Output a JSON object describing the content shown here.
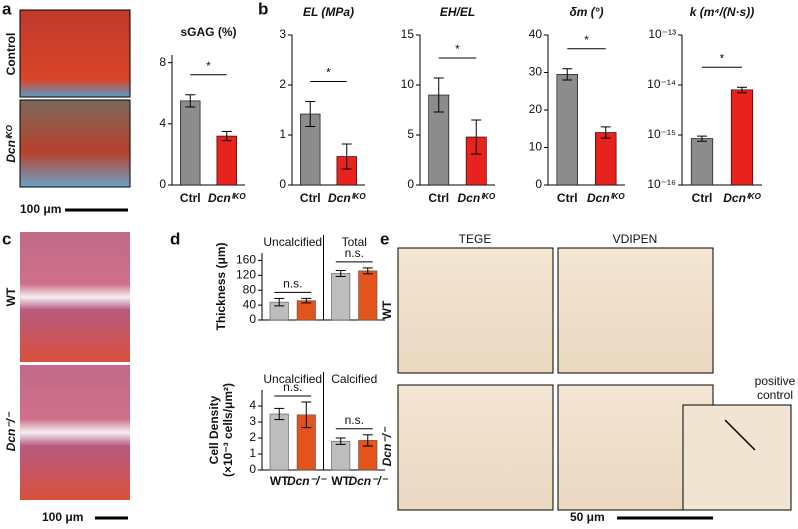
{
  "figure": {
    "panel_labels": [
      "a",
      "b",
      "c",
      "d",
      "e"
    ],
    "a_rows": [
      "Control",
      "Dcnⁱᴷᴼ"
    ],
    "a_scale": "100 μm",
    "c_rows": [
      "WT",
      "Dcn⁻/⁻"
    ],
    "c_scale": "100 μm",
    "e_cols": [
      "TEGE",
      "VDIPEN"
    ],
    "e_rows": [
      "WT",
      "Dcn⁻/⁻"
    ],
    "e_inset": [
      "positive",
      "control"
    ],
    "e_scale": "50 μm"
  },
  "chart_data": [
    {
      "type": "bar",
      "title": "sGAG (%)",
      "categories": [
        "Ctrl",
        "Dcnⁱᴷᴼ"
      ],
      "values": [
        5.5,
        3.2
      ],
      "errors": [
        0.4,
        0.3
      ],
      "colors": [
        "#8c8c8c",
        "#e8231f"
      ],
      "ylim": [
        0,
        8.5
      ],
      "yticks": [
        0,
        4,
        8
      ],
      "significance": "*"
    },
    {
      "type": "bar",
      "title": "EL (MPa)",
      "categories": [
        "Ctrl",
        "Dcnⁱᴷᴼ"
      ],
      "values": [
        1.42,
        0.57
      ],
      "errors": [
        0.25,
        0.25
      ],
      "colors": [
        "#8c8c8c",
        "#e8231f"
      ],
      "ylim": [
        0,
        3
      ],
      "yticks": [
        0,
        1,
        2,
        3
      ],
      "significance": "*"
    },
    {
      "type": "bar",
      "title": "EH/EL",
      "categories": [
        "Ctrl",
        "Dcnⁱᴷᴼ"
      ],
      "values": [
        9.0,
        4.8
      ],
      "errors": [
        1.7,
        1.7
      ],
      "colors": [
        "#8c8c8c",
        "#e8231f"
      ],
      "ylim": [
        0,
        15
      ],
      "yticks": [
        0,
        5,
        10,
        15
      ],
      "significance": "*"
    },
    {
      "type": "bar",
      "title": "δm (°)",
      "categories": [
        "Ctrl",
        "Dcnⁱᴷᴼ"
      ],
      "values": [
        29.5,
        14
      ],
      "errors": [
        1.5,
        1.5
      ],
      "colors": [
        "#8c8c8c",
        "#e8231f"
      ],
      "ylim": [
        0,
        40
      ],
      "yticks": [
        0,
        10,
        20,
        30,
        40
      ],
      "significance": "*"
    },
    {
      "type": "bar",
      "title": "k (m⁴/(N·s))",
      "log": true,
      "categories": [
        "Ctrl",
        "Dcnⁱᴷᴼ"
      ],
      "values": [
        8.5e-16,
        8e-15
      ],
      "errors": [
        1e-16,
        1e-15
      ],
      "colors": [
        "#8c8c8c",
        "#e8231f"
      ],
      "ylim": [
        1e-16,
        1e-13
      ],
      "yticks": [
        {
          "value": 1e-16,
          "label": "10⁻¹⁶"
        },
        {
          "value": 1e-15,
          "label": "10⁻¹⁵"
        },
        {
          "value": 1e-14,
          "label": "10⁻¹⁴"
        },
        {
          "value": 1e-13,
          "label": "10⁻¹³"
        }
      ],
      "significance": "*"
    },
    {
      "type": "grouped-bar",
      "ylabel": [
        "Thickness (μm)"
      ],
      "categories": [
        "Uncalcified",
        "Total"
      ],
      "series": [
        {
          "color": "#bdbdbd",
          "values": [
            48,
            125
          ],
          "errors": [
            10,
            8
          ]
        },
        {
          "color": "#e2541c",
          "values": [
            52,
            132
          ],
          "errors": [
            6,
            8
          ]
        }
      ],
      "ylim": [
        0,
        180
      ],
      "yticks": [
        0,
        40,
        80,
        120,
        160
      ],
      "significance": [
        "n.s.",
        "n.s."
      ]
    },
    {
      "type": "grouped-bar",
      "ylabel": [
        "Cell Density",
        "(×10⁻³ cells/μm²)"
      ],
      "categories": [
        "Uncalcified",
        "Calcified"
      ],
      "series": [
        {
          "name": "WT",
          "color": "#bdbdbd",
          "values": [
            3.5,
            1.8
          ],
          "errors": [
            0.35,
            0.2
          ]
        },
        {
          "name": "Dcn⁻/⁻",
          "color": "#e2541c",
          "values": [
            3.45,
            1.85
          ],
          "errors": [
            0.8,
            0.35
          ]
        }
      ],
      "ylim": [
        0,
        5
      ],
      "yticks": [
        0,
        1,
        2,
        3,
        4
      ],
      "significance": [
        "n.s.",
        "n.s."
      ]
    }
  ]
}
